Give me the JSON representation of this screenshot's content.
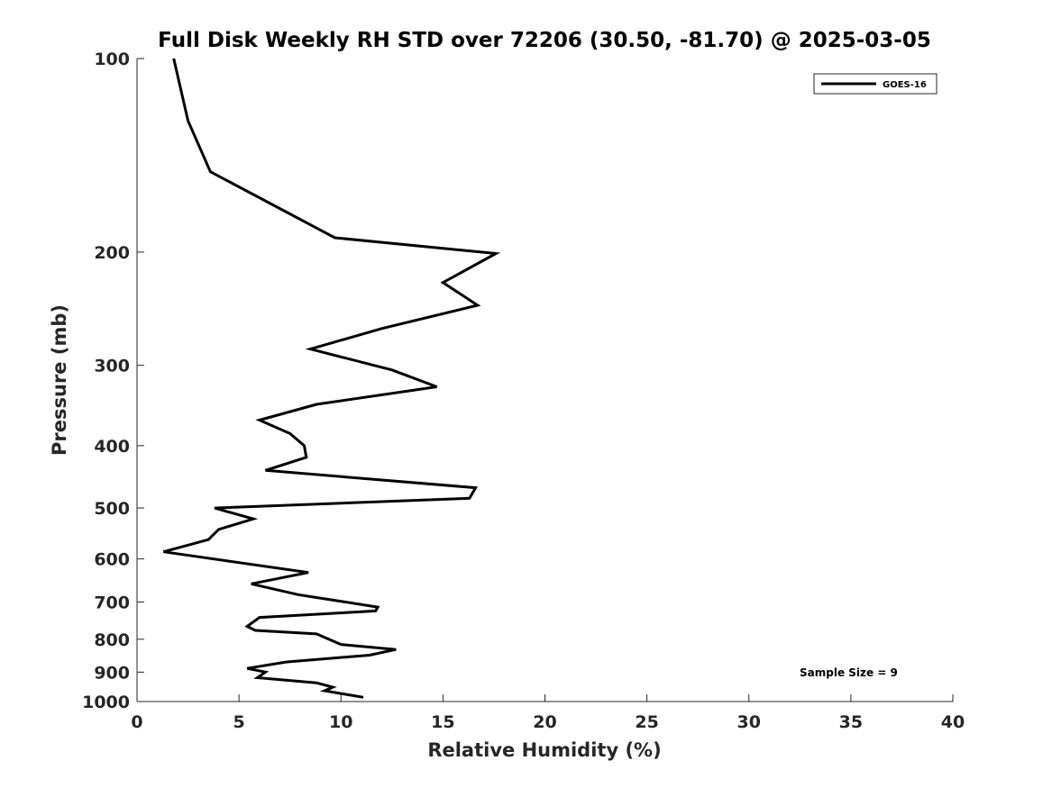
{
  "chart_data": {
    "type": "line",
    "title": "Full Disk Weekly RH STD over 72206 (30.50, -81.70) @ 2025-03-05",
    "xlabel": "Relative Humidity (%)",
    "ylabel": "Pressure (mb)",
    "xlim": [
      0,
      40
    ],
    "ylim": [
      100,
      1000
    ],
    "y_scale": "log",
    "y_reversed": true,
    "grid": false,
    "legend_position": "top-right",
    "x_ticks": [
      "0",
      "5",
      "10",
      "15",
      "20",
      "25",
      "30",
      "35",
      "40"
    ],
    "y_ticks": [
      "100",
      "200",
      "300",
      "400",
      "500",
      "600",
      "700",
      "800",
      "900",
      "1000"
    ],
    "series": [
      {
        "name": "GOES-16",
        "color": "#000000",
        "points": [
          [
            1.8,
            100
          ],
          [
            2.5,
            125
          ],
          [
            3.6,
            150
          ],
          [
            9.7,
            190
          ],
          [
            17.6,
            201
          ],
          [
            15.0,
            223
          ],
          [
            16.7,
            242
          ],
          [
            12.0,
            263
          ],
          [
            8.5,
            283
          ],
          [
            12.5,
            305
          ],
          [
            14.7,
            324
          ],
          [
            8.8,
            345
          ],
          [
            6.0,
            365
          ],
          [
            7.5,
            383
          ],
          [
            8.2,
            400
          ],
          [
            8.3,
            417
          ],
          [
            6.3,
            437
          ],
          [
            16.6,
            465
          ],
          [
            16.3,
            483
          ],
          [
            3.8,
            500
          ],
          [
            5.7,
            520
          ],
          [
            4.0,
            540
          ],
          [
            3.5,
            560
          ],
          [
            1.3,
            585
          ],
          [
            8.4,
            630
          ],
          [
            5.6,
            656
          ],
          [
            7.9,
            682
          ],
          [
            11.8,
            713
          ],
          [
            11.7,
            723
          ],
          [
            6.0,
            740
          ],
          [
            5.4,
            764
          ],
          [
            5.8,
            775
          ],
          [
            8.8,
            785
          ],
          [
            10.0,
            815
          ],
          [
            12.7,
            830
          ],
          [
            11.4,
            847
          ],
          [
            7.3,
            868
          ],
          [
            5.4,
            888
          ],
          [
            6.3,
            900
          ],
          [
            5.9,
            918
          ],
          [
            8.8,
            935
          ],
          [
            9.6,
            950
          ],
          [
            9.2,
            962
          ],
          [
            11.1,
            985
          ]
        ]
      }
    ],
    "annotation": "Sample Size = 9"
  }
}
